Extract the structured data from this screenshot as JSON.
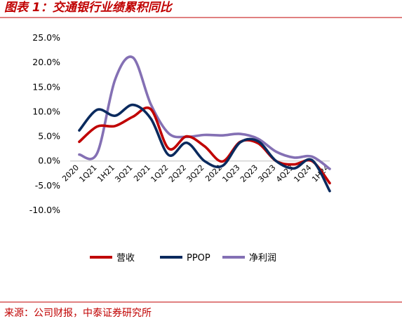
{
  "header": {
    "title": "图表 1：交通银行业绩累积同比"
  },
  "footer": {
    "source": "来源：公司财报，中泰证券研究所"
  },
  "colors": {
    "accent": "#c00000"
  },
  "chart_data": {
    "type": "line",
    "title": "",
    "xlabel": "",
    "ylabel": "",
    "categories": [
      "2020",
      "1Q21",
      "1H21",
      "3Q21",
      "2021",
      "1Q22",
      "1H22",
      "3Q22",
      "2022",
      "1Q23",
      "1H23",
      "3Q23",
      "2023",
      "1Q24",
      "1H24"
    ],
    "x_tick_labels": [
      "2020",
      "1Q21",
      "1H21",
      "3Q21",
      "2021",
      "1Q22",
      "2Q22",
      "3Q22",
      "2022",
      "1Q23",
      "2Q23",
      "3Q23",
      "4Q23",
      "1Q24",
      "1H24"
    ],
    "y_tick_labels": [
      "25.0%",
      "20.0%",
      "15.0%",
      "10.0%",
      "5.0%",
      "0.0%",
      "-5.0%",
      "-10.0%"
    ],
    "ylim": [
      -10,
      25
    ],
    "y_ticks": [
      25,
      20,
      15,
      10,
      5,
      0,
      -5,
      -10
    ],
    "legend_position": "bottom",
    "grid": false,
    "series": [
      {
        "name": "营收",
        "color": "#c00000",
        "values": [
          3.9,
          7.0,
          7.1,
          9.0,
          10.5,
          2.5,
          5.0,
          3.0,
          -0.1,
          3.9,
          3.6,
          0.0,
          -0.7,
          0.0,
          -4.5
        ]
      },
      {
        "name": "PPOP",
        "color": "#0a2a5e",
        "values": [
          6.2,
          10.4,
          9.2,
          11.4,
          8.6,
          1.2,
          3.7,
          0.0,
          -1.0,
          3.8,
          4.0,
          0.0,
          -1.5,
          0.2,
          -6.1
        ]
      },
      {
        "name": "净利润",
        "color": "#8470b4",
        "values": [
          1.3,
          1.6,
          16.5,
          21.0,
          11.5,
          5.6,
          4.9,
          5.3,
          5.2,
          5.5,
          4.5,
          1.9,
          0.7,
          0.9,
          -1.6
        ]
      }
    ]
  }
}
